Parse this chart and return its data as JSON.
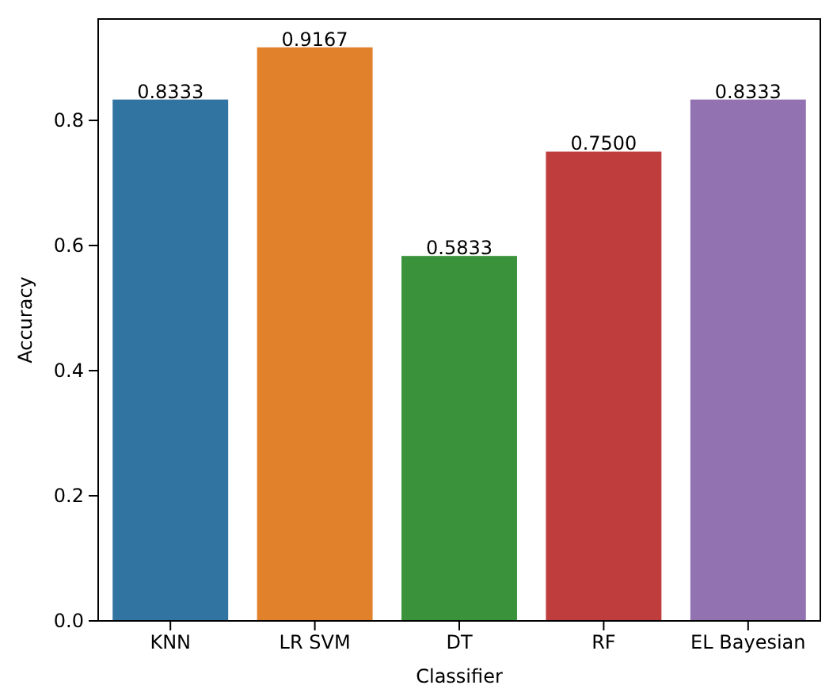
{
  "chart_data": {
    "type": "bar",
    "xlabel": "Classifier",
    "ylabel": "Accuracy",
    "categories": [
      "KNN",
      "LR SVM",
      "DT",
      "RF",
      "EL Bayesian"
    ],
    "values": [
      0.8333,
      0.9167,
      0.5833,
      0.75,
      0.8333
    ],
    "colors": [
      "#3274a1",
      "#e1812c",
      "#3a923a",
      "#c03d3e",
      "#9372b2"
    ],
    "value_labels": [
      "0.8333",
      "0.9167",
      "0.5833",
      "0.7500",
      "0.8333"
    ],
    "ylim": [
      0,
      0.962
    ],
    "yticks": [
      {
        "value": 0,
        "label": "0.0"
      },
      {
        "value": 0.2,
        "label": "0.2"
      },
      {
        "value": 0.4,
        "label": "0.4"
      },
      {
        "value": 0.6,
        "label": "0.6"
      },
      {
        "value": 0.8,
        "label": "0.8"
      }
    ],
    "grid": false
  }
}
